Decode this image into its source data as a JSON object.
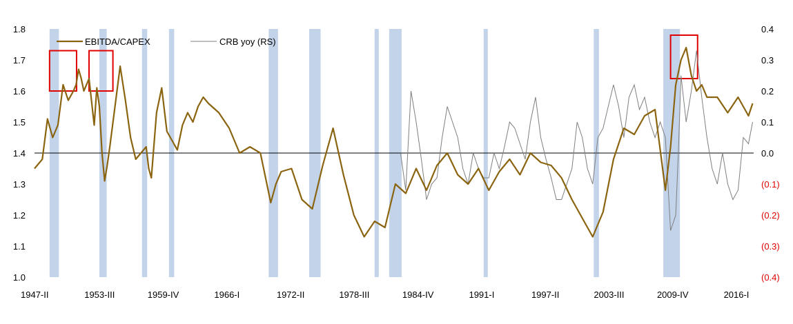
{
  "chart_data": {
    "type": "line",
    "title": "",
    "xlabel": "",
    "ylabel_left": "",
    "ylabel_right": "",
    "x_ticks": [
      "1947-II",
      "1953-III",
      "1959-IV",
      "1966-I",
      "1972-II",
      "1978-III",
      "1984-IV",
      "1991-I",
      "1997-II",
      "2003-III",
      "2009-IV",
      "2016-I"
    ],
    "x_range": [
      1947.25,
      2016.5
    ],
    "y_left": {
      "range": [
        1.0,
        1.8
      ],
      "ticks": [
        "1.0",
        "1.1",
        "1.2",
        "1.3",
        "1.4",
        "1.5",
        "1.6",
        "1.7",
        "1.8"
      ]
    },
    "y_right": {
      "range": [
        -0.4,
        0.4
      ],
      "ticks": [
        "(0.4)",
        "(0.3)",
        "(0.2)",
        "(0.1)",
        "0.0",
        "0.1",
        "0.2",
        "0.3",
        "0.4"
      ]
    },
    "grid": false,
    "legend": {
      "position": "top-left"
    },
    "colors": {
      "ebitda": "#8b6410",
      "crb": "#7f7f7f",
      "recession": "#b8cbe6",
      "highlight": "#e00000",
      "right_negative": "#e00000"
    },
    "series": [
      {
        "name": "EBITDA/CAPEX",
        "axis": "left",
        "x": [
          1947.25,
          1948.0,
          1948.5,
          1949.0,
          1949.25,
          1949.5,
          1950.0,
          1950.5,
          1951.0,
          1951.25,
          1951.5,
          1951.75,
          1952.0,
          1952.5,
          1953.0,
          1953.25,
          1953.5,
          1953.75,
          1954.0,
          1954.25,
          1954.5,
          1955.0,
          1955.5,
          1956.0,
          1956.5,
          1957.0,
          1957.5,
          1958.0,
          1958.25,
          1958.5,
          1959.0,
          1959.5,
          1960.0,
          1960.5,
          1961.0,
          1961.5,
          1962.0,
          1962.5,
          1963.0,
          1963.5,
          1964.0,
          1965.0,
          1966.0,
          1967.0,
          1968.0,
          1969.0,
          1970.0,
          1970.5,
          1971.0,
          1972.0,
          1973.0,
          1974.0,
          1975.0,
          1976.0,
          1977.0,
          1978.0,
          1979.0,
          1980.0,
          1981.0,
          1982.0,
          1983.0,
          1984.0,
          1985.0,
          1986.0,
          1987.0,
          1988.0,
          1989.0,
          1990.0,
          1991.0,
          1992.0,
          1993.0,
          1994.0,
          1995.0,
          1996.0,
          1997.0,
          1998.0,
          1999.0,
          2000.0,
          2001.0,
          2002.0,
          2003.0,
          2004.0,
          2005.0,
          2006.0,
          2007.0,
          2007.5,
          2008.0,
          2008.5,
          2009.0,
          2009.5,
          2010.0,
          2010.5,
          2011.0,
          2011.5,
          2012.0,
          2013.0,
          2014.0,
          2015.0,
          2016.0,
          2016.4
        ],
        "values": [
          1.35,
          1.38,
          1.51,
          1.45,
          1.47,
          1.49,
          1.62,
          1.57,
          1.6,
          1.62,
          1.67,
          1.64,
          1.6,
          1.64,
          1.49,
          1.61,
          1.55,
          1.4,
          1.31,
          1.36,
          1.42,
          1.55,
          1.68,
          1.57,
          1.45,
          1.38,
          1.4,
          1.42,
          1.35,
          1.32,
          1.53,
          1.61,
          1.47,
          1.44,
          1.41,
          1.49,
          1.53,
          1.5,
          1.55,
          1.58,
          1.56,
          1.53,
          1.48,
          1.4,
          1.42,
          1.4,
          1.24,
          1.3,
          1.34,
          1.35,
          1.25,
          1.22,
          1.36,
          1.48,
          1.33,
          1.2,
          1.13,
          1.18,
          1.16,
          1.3,
          1.27,
          1.35,
          1.28,
          1.36,
          1.4,
          1.33,
          1.3,
          1.35,
          1.28,
          1.34,
          1.38,
          1.33,
          1.4,
          1.37,
          1.36,
          1.32,
          1.25,
          1.19,
          1.13,
          1.21,
          1.38,
          1.48,
          1.46,
          1.52,
          1.54,
          1.41,
          1.28,
          1.42,
          1.62,
          1.7,
          1.74,
          1.65,
          1.6,
          1.62,
          1.58,
          1.58,
          1.53,
          1.58,
          1.52,
          1.56
        ]
      },
      {
        "name": "CRB yoy (RS)",
        "axis": "right",
        "x": [
          1982.5,
          1983.0,
          1983.5,
          1984.0,
          1984.5,
          1985.0,
          1985.5,
          1986.0,
          1986.5,
          1987.0,
          1987.5,
          1988.0,
          1988.5,
          1989.0,
          1989.5,
          1990.0,
          1990.5,
          1991.0,
          1991.5,
          1992.0,
          1992.5,
          1993.0,
          1993.5,
          1994.0,
          1994.5,
          1995.0,
          1995.5,
          1996.0,
          1996.5,
          1997.0,
          1997.5,
          1998.0,
          1998.5,
          1999.0,
          1999.5,
          2000.0,
          2000.5,
          2001.0,
          2001.5,
          2002.0,
          2002.5,
          2003.0,
          2003.5,
          2004.0,
          2004.5,
          2005.0,
          2005.5,
          2006.0,
          2006.5,
          2007.0,
          2007.5,
          2008.0,
          2008.5,
          2009.0,
          2009.25,
          2009.5,
          2010.0,
          2010.5,
          2011.0,
          2011.5,
          2012.0,
          2012.5,
          2013.0,
          2013.5,
          2014.0,
          2014.5,
          2015.0,
          2015.5,
          2016.0,
          2016.4
        ],
        "values": [
          0.0,
          -0.12,
          0.2,
          0.1,
          -0.02,
          -0.15,
          -0.1,
          -0.08,
          0.05,
          0.15,
          0.1,
          0.05,
          -0.05,
          -0.1,
          0.0,
          -0.05,
          -0.08,
          -0.08,
          0.0,
          -0.05,
          0.02,
          0.1,
          0.08,
          0.03,
          -0.02,
          0.1,
          0.18,
          0.05,
          -0.02,
          -0.08,
          -0.15,
          -0.15,
          -0.1,
          -0.05,
          0.1,
          0.05,
          -0.05,
          -0.1,
          0.05,
          0.08,
          0.15,
          0.22,
          0.15,
          0.05,
          0.18,
          0.22,
          0.14,
          0.18,
          0.1,
          0.05,
          0.1,
          0.05,
          -0.25,
          -0.2,
          0.0,
          0.25,
          0.1,
          0.2,
          0.33,
          0.18,
          0.05,
          -0.05,
          -0.1,
          0.0,
          -0.1,
          -0.15,
          -0.12,
          0.05,
          0.03,
          0.1
        ]
      }
    ],
    "recession_bands": [
      [
        1948.7,
        1949.6
      ],
      [
        1953.5,
        1954.2
      ],
      [
        1957.6,
        1958.1
      ],
      [
        1960.2,
        1960.7
      ],
      [
        1969.8,
        1970.7
      ],
      [
        1973.7,
        1974.8
      ],
      [
        1980.0,
        1980.4
      ],
      [
        1981.4,
        1982.6
      ],
      [
        1990.5,
        1990.9
      ],
      [
        2001.1,
        2001.6
      ],
      [
        2007.8,
        2009.4
      ]
    ],
    "highlight_boxes": [
      [
        1948.7,
        1951.3,
        1.6,
        1.73
      ],
      [
        1952.5,
        1954.8,
        1.6,
        1.73
      ],
      [
        2008.5,
        2011.1,
        1.64,
        1.78
      ]
    ]
  },
  "legend_labels": {
    "ebitda": "EBITDA/CAPEX",
    "crb": "CRB yoy (RS)"
  }
}
